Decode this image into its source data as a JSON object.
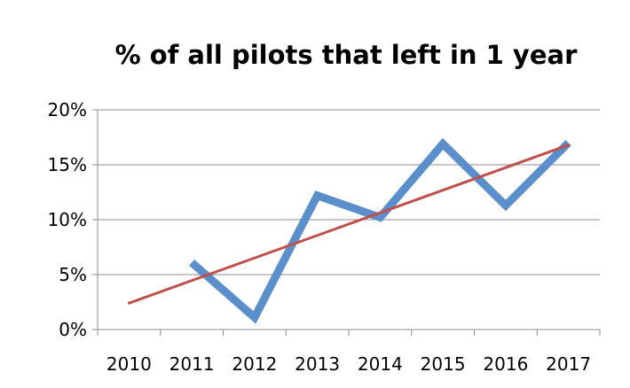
{
  "chart_data": {
    "type": "line",
    "title": "% of all pilots that left in 1 year",
    "xlabel": "",
    "ylabel": "",
    "categories": [
      "2010",
      "2011",
      "2012",
      "2013",
      "2014",
      "2015",
      "2016",
      "2017"
    ],
    "x_start_offset": 0.5,
    "y_ticks": [
      {
        "value": 0,
        "label": "0%"
      },
      {
        "value": 5,
        "label": "5%"
      },
      {
        "value": 10,
        "label": "10%"
      },
      {
        "value": 15,
        "label": "15%"
      },
      {
        "value": 20,
        "label": "20%"
      }
    ],
    "ylim": [
      0,
      20
    ],
    "grid": true,
    "legend": "none",
    "series": [
      {
        "kind": "data",
        "color": "#5b8fcb",
        "points": [
          {
            "x": "2011",
            "y": 6.1
          },
          {
            "x": "2012",
            "y": 1.1
          },
          {
            "x": "2013",
            "y": 12.2
          },
          {
            "x": "2014",
            "y": 10.2
          },
          {
            "x": "2015",
            "y": 16.9
          },
          {
            "x": "2016",
            "y": 11.3
          },
          {
            "x": "2017",
            "y": 17.0
          }
        ]
      },
      {
        "kind": "trendline",
        "color": "#c0504d",
        "points": [
          {
            "x": "2010",
            "y": 2.4
          },
          {
            "x": "2017",
            "y": 16.8
          }
        ]
      }
    ]
  }
}
